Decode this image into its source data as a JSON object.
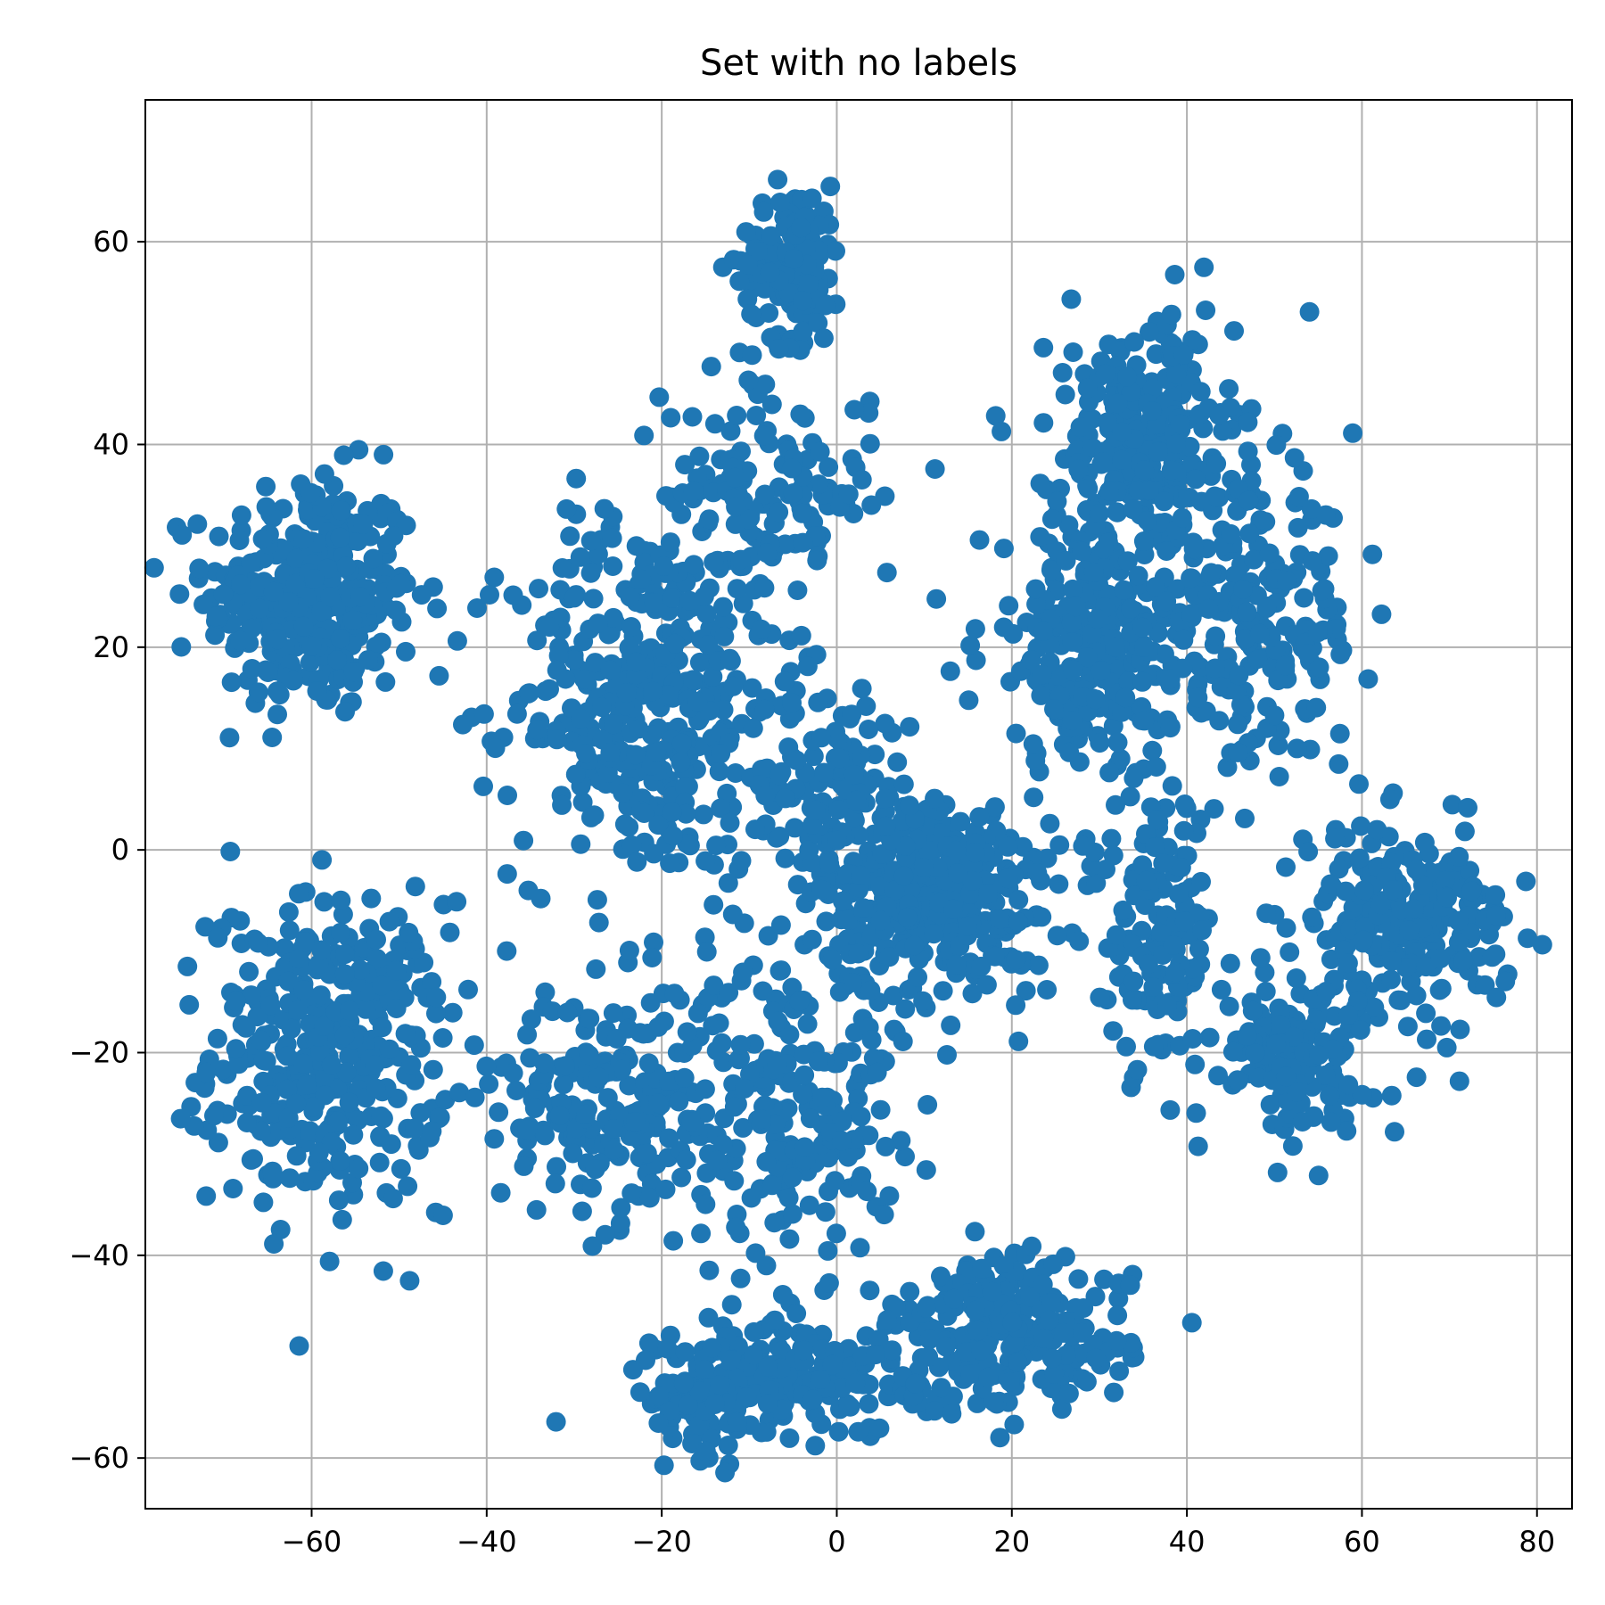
{
  "chart_data": {
    "type": "scatter",
    "title": "Set with no labels",
    "xlabel": "",
    "ylabel": "",
    "xlim": [
      -79,
      84
    ],
    "ylim": [
      -65,
      74
    ],
    "xticks": [
      -60,
      -40,
      -20,
      0,
      20,
      40,
      60,
      80
    ],
    "yticks": [
      -60,
      -40,
      -20,
      0,
      20,
      40,
      60
    ],
    "grid": true,
    "marker_color": "#1f77b4",
    "axis_color": "#000000",
    "grid_color": "#b0b0b0",
    "clusters": [
      {
        "cx": -60,
        "cy": 25,
        "sx": 8,
        "sy": 8,
        "n": 330
      },
      {
        "cx": -58,
        "cy": -20,
        "sx": 9,
        "sy": 10,
        "n": 380
      },
      {
        "cx": -22,
        "cy": 15,
        "sx": 10,
        "sy": 12,
        "n": 380
      },
      {
        "cx": -5,
        "cy": 58,
        "sx": 4,
        "sy": 5,
        "n": 130
      },
      {
        "cx": -8,
        "cy": 35,
        "sx": 8,
        "sy": 8,
        "n": 150
      },
      {
        "cx": -25,
        "cy": -25,
        "sx": 9,
        "sy": 8,
        "n": 220
      },
      {
        "cx": -5,
        "cy": -25,
        "sx": 8,
        "sy": 10,
        "n": 200
      },
      {
        "cx": 12,
        "cy": -5,
        "sx": 9,
        "sy": 7,
        "n": 320
      },
      {
        "cx": 0,
        "cy": 5,
        "sx": 7,
        "sy": 8,
        "n": 140
      },
      {
        "cx": 35,
        "cy": 40,
        "sx": 7,
        "sy": 8,
        "n": 280
      },
      {
        "cx": 30,
        "cy": 20,
        "sx": 9,
        "sy": 8,
        "n": 250
      },
      {
        "cx": 48,
        "cy": 22,
        "sx": 8,
        "sy": 9,
        "n": 200
      },
      {
        "cx": 37,
        "cy": -8,
        "sx": 4,
        "sy": 9,
        "n": 130
      },
      {
        "cx": 65,
        "cy": -7,
        "sx": 8,
        "sy": 6,
        "n": 230
      },
      {
        "cx": 52,
        "cy": -20,
        "sx": 6,
        "sy": 5,
        "n": 140
      },
      {
        "cx": -5,
        "cy": -52,
        "sx": 10,
        "sy": 4,
        "n": 200
      },
      {
        "cx": 20,
        "cy": -48,
        "sx": 9,
        "sy": 5,
        "n": 230
      },
      {
        "cx": -15,
        "cy": -55,
        "sx": 5,
        "sy": 3,
        "n": 80
      }
    ]
  }
}
